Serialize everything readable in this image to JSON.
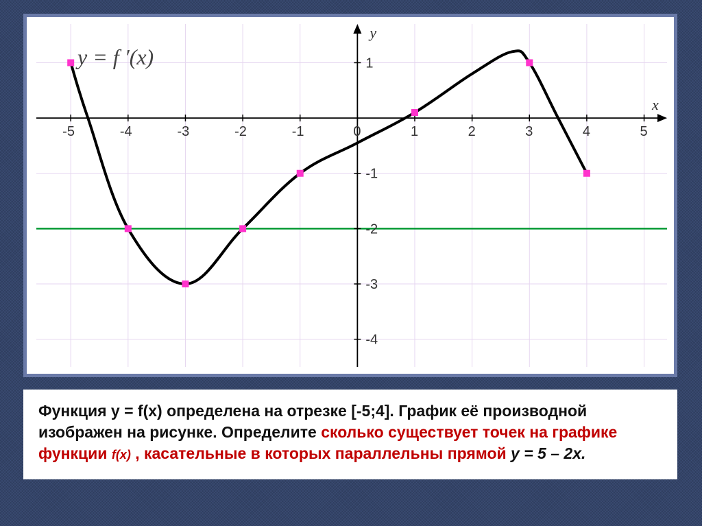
{
  "chart": {
    "type": "line",
    "background_color": "#ffffff",
    "grid_color": "#e6d6f0",
    "axis_color": "#000000",
    "equation_label": "y = f ′(x)",
    "equation_fontsize": 32,
    "xlabel": "x",
    "ylabel": "y",
    "label_fontsize": 22,
    "xlim": [
      -5.6,
      5.4
    ],
    "ylim": [
      -4.5,
      1.7
    ],
    "xtick_step": 1,
    "ytick_step": 1,
    "xticks": [
      -5,
      -4,
      -3,
      -2,
      -1,
      0,
      1,
      2,
      3,
      4,
      5
    ],
    "yticks": [
      1,
      -1,
      -2,
      -3,
      -4
    ],
    "tick_fontsize": 20,
    "tick_color": "#333333",
    "curve": {
      "color": "#000000",
      "width": 4,
      "points": [
        [
          -5,
          1
        ],
        [
          -4.7,
          0
        ],
        [
          -4,
          -2
        ],
        [
          -3,
          -3
        ],
        [
          -2,
          -2
        ],
        [
          -1,
          -1
        ],
        [
          0,
          -0.45
        ],
        [
          1,
          0.1
        ],
        [
          2,
          0.8
        ],
        [
          2.7,
          1.2
        ],
        [
          3,
          1
        ],
        [
          3.5,
          0
        ],
        [
          4,
          -1
        ]
      ]
    },
    "reference_line": {
      "y": -2,
      "color": "#009933",
      "width": 2.5
    },
    "markers": {
      "color": "#ff33cc",
      "size": 5,
      "points": [
        [
          -5,
          1
        ],
        [
          -4,
          -2
        ],
        [
          -3,
          -3
        ],
        [
          -2,
          -2
        ],
        [
          -1,
          -1
        ],
        [
          1,
          0.1
        ],
        [
          3,
          1
        ],
        [
          4,
          -1
        ]
      ]
    }
  },
  "caption": {
    "part1": "Функция y = f(x) определена на отрезке [-5;4]. График её производной изображен на рисунке. Определите ",
    "red1": "сколько существует точек на графике функции ",
    "fx": "f(x)",
    "red2": " , касательные в которых параллельны прямой",
    "eq": "  y = 5 – 2x."
  }
}
